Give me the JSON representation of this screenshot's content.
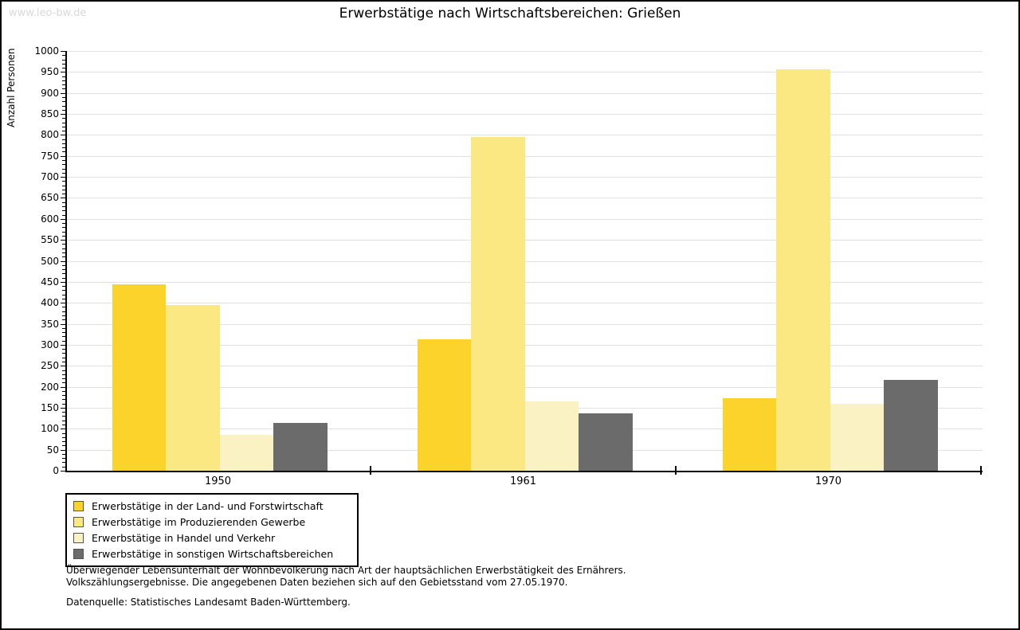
{
  "watermark": "www.leo-bw.de",
  "title": "Erwerbstätige nach Wirtschaftsbereichen: Grießen",
  "chart_data": {
    "type": "bar",
    "title": "Erwerbstätige nach Wirtschaftsbereichen: Grießen",
    "xlabel": "",
    "ylabel": "Anzahl Personen",
    "categories": [
      "1950",
      "1961",
      "1970"
    ],
    "series": [
      {
        "name": "Erwerbstätige in der Land- und Forstwirtschaft",
        "color": "#FCD32B",
        "values": [
          445,
          314,
          172
        ]
      },
      {
        "name": "Erwerbstätige im Produzierenden Gewerbe",
        "color": "#FCE883",
        "values": [
          395,
          795,
          956
        ]
      },
      {
        "name": "Erwerbstätige in Handel und Verkehr",
        "color": "#FBF2C4",
        "values": [
          85,
          166,
          160
        ]
      },
      {
        "name": "Erwerbstätige in sonstigen Wirtschaftsbereichen",
        "color": "#6B6B6B",
        "values": [
          114,
          137,
          217
        ]
      }
    ],
    "ylim": [
      0,
      1000
    ],
    "ytick_step": 50,
    "minor_tick_step": 10,
    "grid": true,
    "legend_position": "bottom-left"
  },
  "footnotes": {
    "line1": "Überwiegender Lebensunterhalt der Wohnbevölkerung nach Art der hauptsächlichen Erwerbstätigkeit des Ernährers.",
    "line2": "Volkszählungsergebnisse. Die angegebenen Daten beziehen sich auf den Gebietsstand vom 27.05.1970.",
    "source": "Datenquelle: Statistisches Landesamt Baden-Württemberg."
  },
  "colors": {
    "grid": "#E2E2E2",
    "axis": "#000000",
    "watermark": "#D9D9D9",
    "swatch_border": "#555555"
  }
}
